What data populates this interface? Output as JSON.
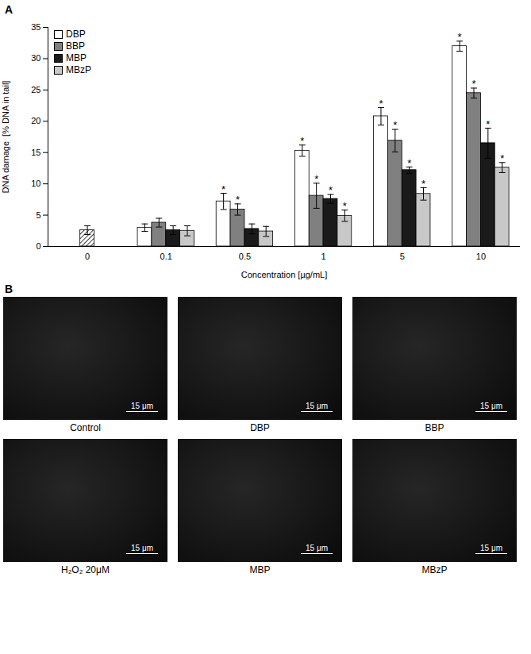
{
  "chart_data": {
    "type": "bar",
    "title": "A",
    "x_label": "Concentration [µg/mL]",
    "y_label": "DNA damage  [% DNA in tail]",
    "categories": [
      "0",
      "0.1",
      "0.5",
      "1",
      "5",
      "10"
    ],
    "control": {
      "value": 2.6,
      "error": 0.7
    },
    "series": [
      {
        "name": "DBP",
        "color": "#ffffff",
        "values": [
          null,
          3.0,
          7.2,
          15.3,
          20.8,
          32.0
        ],
        "errors": [
          null,
          0.6,
          1.3,
          0.9,
          1.4,
          0.8
        ],
        "significance": [
          null,
          null,
          "*",
          "*",
          "*",
          "*"
        ]
      },
      {
        "name": "BBP",
        "color": "#808080",
        "values": [
          null,
          3.8,
          5.9,
          8.1,
          16.9,
          24.5
        ],
        "errors": [
          null,
          0.7,
          0.9,
          2.0,
          1.8,
          0.8
        ],
        "significance": [
          null,
          null,
          "*",
          "*",
          "*",
          "*"
        ]
      },
      {
        "name": "MBP",
        "color": "#1a1a1a",
        "values": [
          null,
          2.6,
          2.8,
          7.6,
          12.2,
          16.5
        ],
        "errors": [
          null,
          0.7,
          0.8,
          0.7,
          0.5,
          2.4
        ],
        "significance": [
          null,
          null,
          null,
          "*",
          "*",
          "*"
        ]
      },
      {
        "name": "MBzP",
        "color": "#c8c8c8",
        "values": [
          null,
          2.5,
          2.4,
          4.9,
          8.4,
          12.6
        ],
        "errors": [
          null,
          0.8,
          0.8,
          0.9,
          1.0,
          0.8
        ],
        "significance": [
          null,
          null,
          null,
          "*",
          "*",
          "*"
        ]
      }
    ],
    "ylim": [
      0,
      35
    ],
    "yticks": [
      0,
      5,
      10,
      15,
      20,
      25,
      30,
      35
    ],
    "legend": "top-left"
  },
  "image_panel": {
    "label": "B",
    "scale_bar": "15 μm",
    "images": [
      "Control",
      "DBP",
      "BBP",
      "H₂O₂ 20μM",
      "MBP",
      "MBzP"
    ]
  }
}
